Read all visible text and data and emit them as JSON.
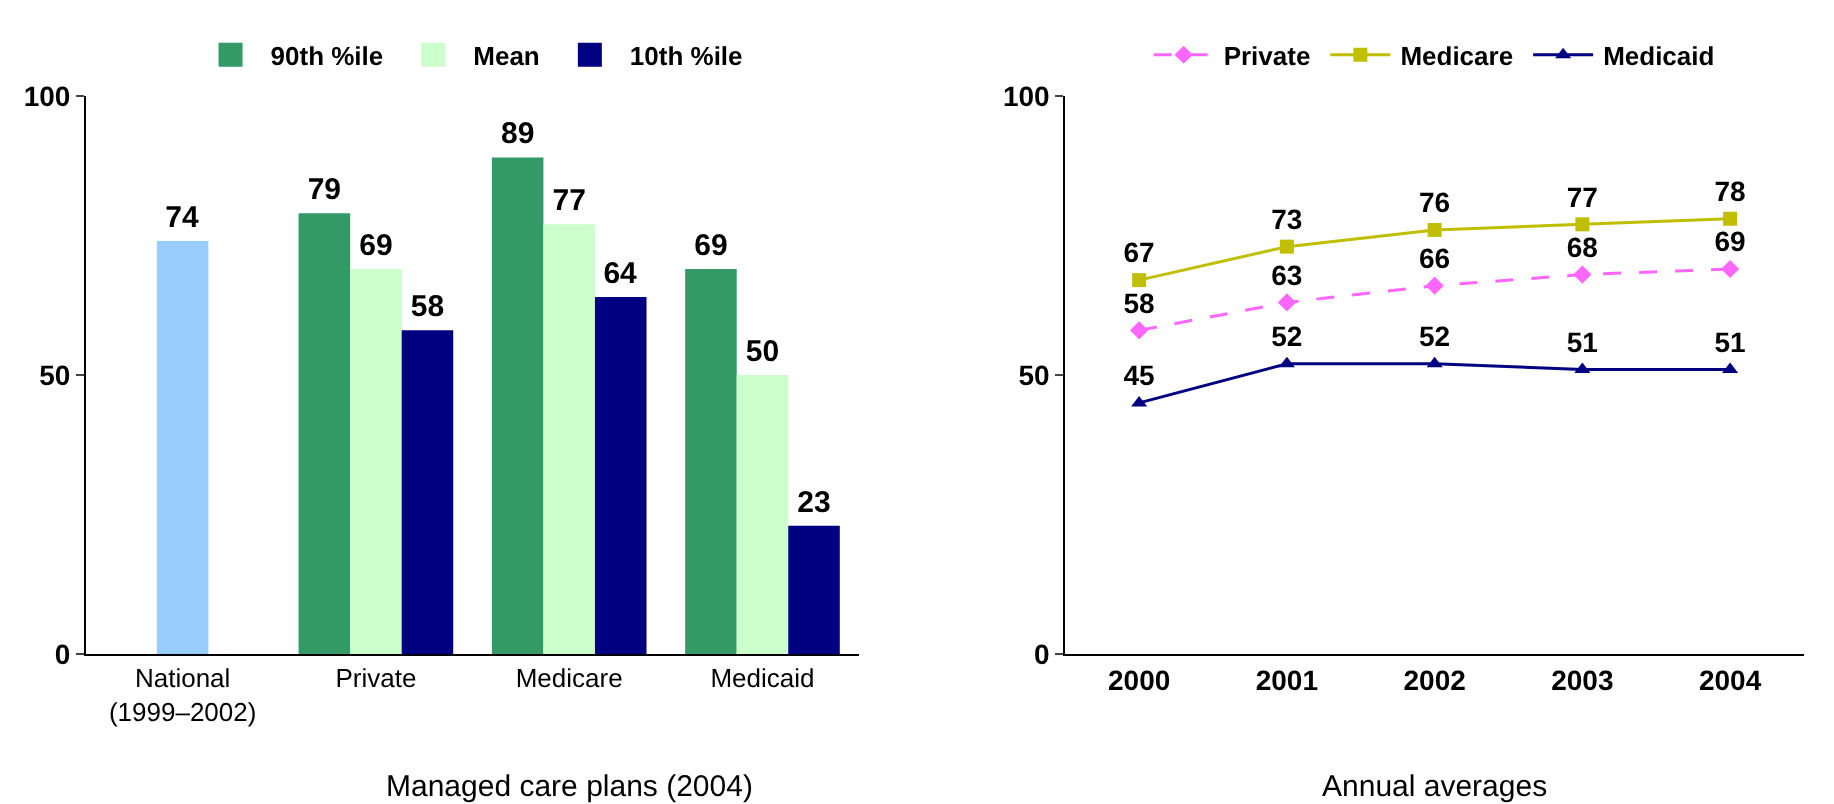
{
  "chart_data": [
    {
      "type": "bar",
      "categories": [
        "National\n(1999–2002)",
        "Private",
        "Medicare",
        "Medicaid"
      ],
      "xlabel": "Managed care plans (2004)",
      "ylim": [
        0,
        100
      ],
      "yticks": [
        0,
        50,
        100
      ],
      "legend": "top",
      "data_labels": true,
      "series": [
        {
          "color": "#99ccff",
          "values": [
            74,
            null,
            null,
            null
          ]
        },
        {
          "name": "90th %ile",
          "color": "#339966",
          "values": [
            null,
            79,
            89,
            69
          ]
        },
        {
          "name": "Mean",
          "color": "#ccffcc",
          "values": [
            null,
            69,
            77,
            50
          ]
        },
        {
          "name": "10th %ile",
          "color": "#000080",
          "values": [
            null,
            58,
            64,
            23
          ]
        }
      ]
    },
    {
      "type": "line",
      "categories": [
        "2000",
        "2001",
        "2002",
        "2003",
        "2004"
      ],
      "xlabel": "Annual averages",
      "ylim": [
        0,
        100
      ],
      "yticks": [
        0,
        50,
        100
      ],
      "legend": "top",
      "data_labels": true,
      "series": [
        {
          "name": "Private",
          "color": "#ff66ff",
          "marker": "diamond",
          "line_style": "dashed",
          "values": [
            58,
            63,
            66,
            68,
            69
          ]
        },
        {
          "name": "Medicare",
          "color": "#bfbf00",
          "marker": "square",
          "line_style": "solid",
          "values": [
            67,
            73,
            76,
            77,
            78
          ]
        },
        {
          "name": "Medicaid",
          "color": "#000080",
          "marker": "triangle",
          "line_style": "solid",
          "values": [
            45,
            52,
            52,
            51,
            51
          ]
        }
      ]
    }
  ]
}
